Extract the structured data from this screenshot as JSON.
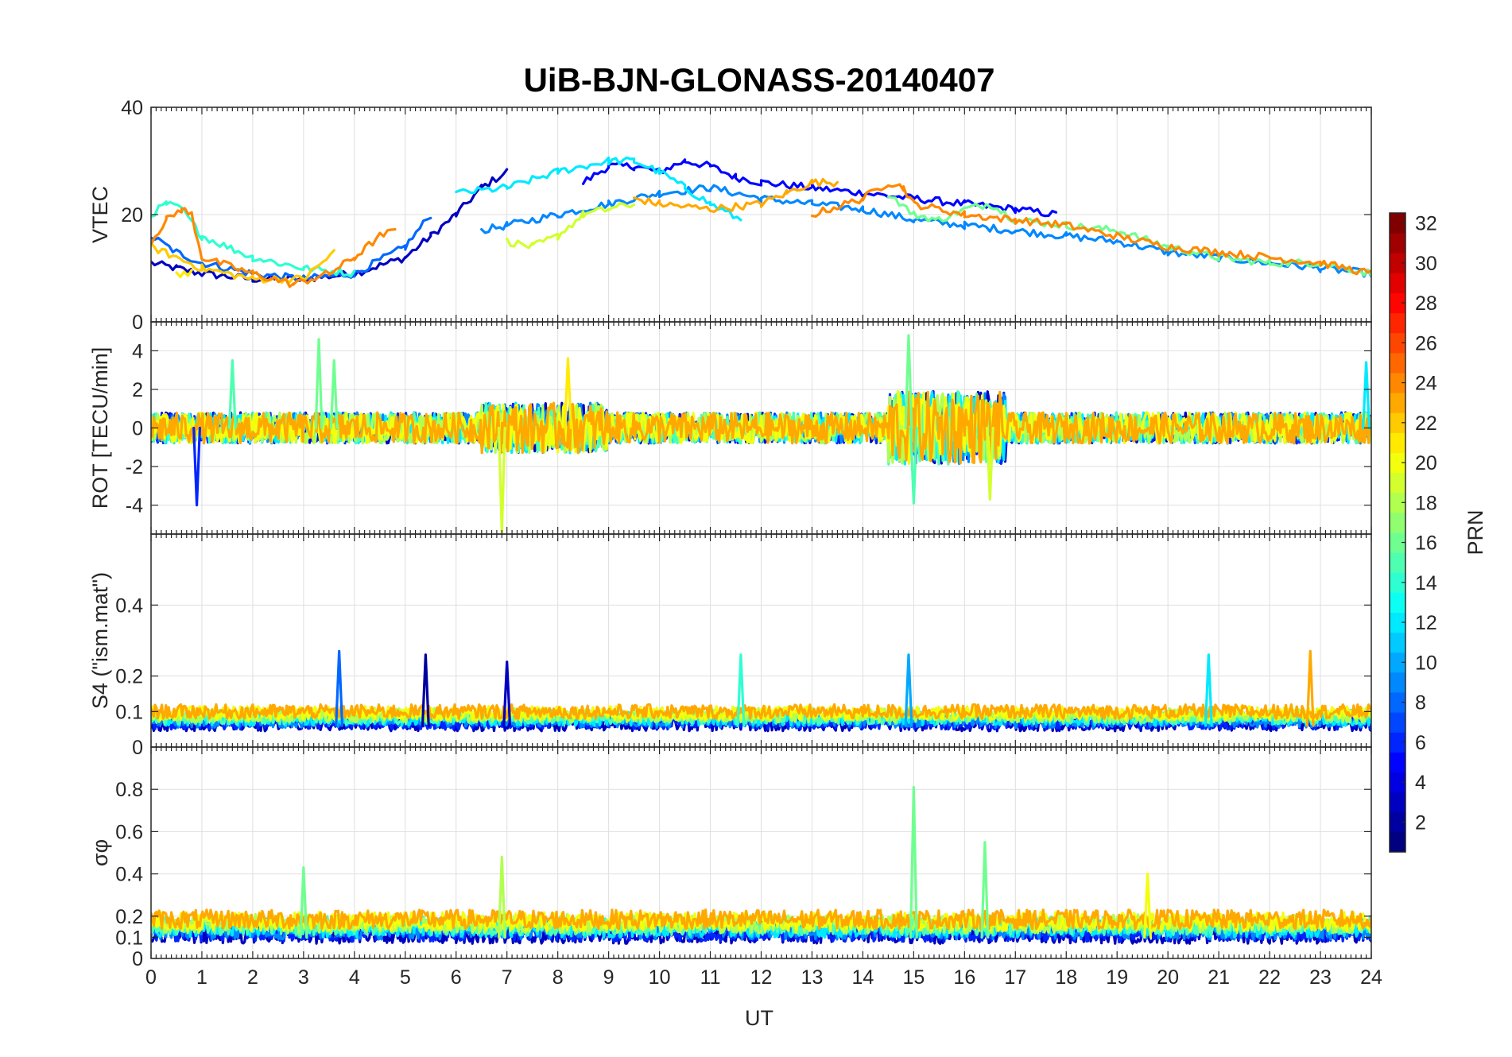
{
  "chart_data": {
    "type": "line",
    "title": "UiB-BJN-GLONASS-20140407",
    "xlabel": "UT",
    "xlim": [
      0,
      24
    ],
    "x_ticks": [
      "0",
      "1",
      "2",
      "3",
      "4",
      "5",
      "6",
      "7",
      "8",
      "9",
      "10",
      "11",
      "12",
      "13",
      "14",
      "15",
      "16",
      "17",
      "18",
      "19",
      "20",
      "21",
      "22",
      "23",
      "24"
    ],
    "colorbar": {
      "label": "PRN",
      "range": [
        1,
        32
      ],
      "ticks": [
        "2",
        "4",
        "6",
        "8",
        "10",
        "12",
        "14",
        "16",
        "18",
        "20",
        "22",
        "24",
        "26",
        "28",
        "30",
        "32"
      ]
    },
    "panels": [
      {
        "name": "vtec",
        "ylabel": "VTEC",
        "ylim": [
          0,
          40
        ],
        "y_ticks": [
          "0",
          "20",
          "40"
        ],
        "series": [
          {
            "prn": 3,
            "x": [
              0,
              0.5,
              1,
              2,
              3,
              4,
              5,
              5.5,
              6,
              6.5,
              7
            ],
            "y": [
              11,
              10,
              9,
              8,
              8,
              9,
              12,
              16,
              20,
              25,
              28
            ]
          },
          {
            "prn": 5,
            "x": [
              8.5,
              9,
              9.5,
              10,
              10.5,
              11,
              11.5,
              12,
              13,
              14,
              15,
              16,
              17,
              17.8
            ],
            "y": [
              26,
              29,
              29,
              28,
              30,
              29,
              27,
              26,
              25,
              24,
              23,
              22,
              21,
              20
            ]
          },
          {
            "prn": 8,
            "x": [
              0,
              0.5,
              1,
              2,
              3,
              4,
              5,
              5.5
            ],
            "y": [
              16,
              13,
              11,
              9,
              8,
              9,
              14,
              20
            ]
          },
          {
            "prn": 9,
            "x": [
              6.5,
              7,
              8,
              9,
              10,
              11,
              12,
              13,
              14,
              15,
              16,
              17,
              18,
              19,
              20,
              21,
              22,
              23,
              24
            ],
            "y": [
              17,
              18,
              20,
              22,
              24,
              25,
              23,
              22,
              21,
              19,
              18,
              17,
              16,
              15,
              13,
              12,
              11,
              10,
              9
            ]
          },
          {
            "prn": 12,
            "x": [
              6,
              7,
              8,
              9,
              9.5,
              10,
              10.5,
              11,
              11.6
            ],
            "y": [
              24,
              25,
              28,
              30,
              30,
              28,
              25,
              22,
              19
            ]
          },
          {
            "prn": 14,
            "x": [
              0,
              0.3,
              0.6,
              1,
              2,
              3,
              4
            ],
            "y": [
              20,
              22,
              21,
              16,
              12,
              10,
              9
            ]
          },
          {
            "prn": 16,
            "x": [
              14.5,
              15,
              15.5,
              16,
              16.5,
              17,
              18,
              19,
              20,
              21,
              22,
              23,
              24
            ],
            "y": [
              24,
              20,
              19,
              21,
              22,
              19,
              18,
              17,
              14,
              12,
              11,
              11,
              9
            ]
          },
          {
            "prn": 19,
            "x": [
              7,
              7.5,
              8,
              8.5,
              9,
              9.5
            ],
            "y": [
              15,
              14,
              16,
              20,
              21,
              22
            ]
          },
          {
            "prn": 21,
            "x": [
              0.5,
              0.8
            ],
            "y": [
              9,
              9
            ]
          },
          {
            "prn": 22,
            "x": [
              0,
              1,
              2,
              3,
              3.6
            ],
            "y": [
              14,
              10,
              8,
              8,
              13
            ]
          },
          {
            "prn": 23,
            "x": [
              9.5,
              10,
              11,
              12,
              12.5,
              13,
              13.5
            ],
            "y": [
              23,
              22,
              21,
              22,
              24,
              26,
              26
            ]
          },
          {
            "prn": 24,
            "x": [
              0,
              0.3,
              0.6,
              0.8,
              1,
              2,
              2.8,
              3.5,
              4,
              4.5,
              4.8
            ],
            "y": [
              15,
              19,
              21,
              20,
              12,
              9,
              7,
              9,
              12,
              16,
              17
            ]
          },
          {
            "prn": 24,
            "x": [
              13,
              14,
              14.5,
              14.8,
              15,
              16,
              17,
              18,
              19,
              20,
              21,
              22,
              23,
              24
            ],
            "y": [
              20,
              23,
              26,
              25,
              22,
              20,
              19,
              18,
              16,
              14,
              13,
              12,
              11,
              9
            ]
          }
        ]
      },
      {
        "name": "rot",
        "ylabel": "ROT [TECU/min]",
        "ylim": [
          -5.5,
          5.5
        ],
        "y_ticks": [
          "-4",
          "-2",
          "0",
          "2",
          "4"
        ],
        "peaks": [
          {
            "x": 0.9,
            "y": -4.0,
            "prn": 6
          },
          {
            "x": 1.6,
            "y": 3.5,
            "prn": 15
          },
          {
            "x": 3.3,
            "y": 4.6,
            "prn": 16
          },
          {
            "x": 3.6,
            "y": 3.5,
            "prn": 16
          },
          {
            "x": 6.9,
            "y": -5.4,
            "prn": 19
          },
          {
            "x": 8.2,
            "y": 3.6,
            "prn": 21
          },
          {
            "x": 14.9,
            "y": 4.8,
            "prn": 16
          },
          {
            "x": 15.0,
            "y": -3.9,
            "prn": 15
          },
          {
            "x": 16.5,
            "y": -3.7,
            "prn": 19
          },
          {
            "x": 23.9,
            "y": 3.4,
            "prn": 12
          }
        ]
      },
      {
        "name": "s4",
        "ylabel": "S4 (\"ism.mat\")",
        "ylim": [
          0,
          0.6
        ],
        "y_ticks": [
          "0",
          "0.1",
          "0.2",
          "0.4"
        ],
        "peaks": [
          {
            "x": 3.7,
            "y": 0.27,
            "prn": 8
          },
          {
            "x": 5.4,
            "y": 0.26,
            "prn": 2
          },
          {
            "x": 7.0,
            "y": 0.24,
            "prn": 3
          },
          {
            "x": 11.6,
            "y": 0.26,
            "prn": 14
          },
          {
            "x": 14.9,
            "y": 0.26,
            "prn": 10
          },
          {
            "x": 20.8,
            "y": 0.26,
            "prn": 12
          },
          {
            "x": 22.8,
            "y": 0.27,
            "prn": 23
          }
        ]
      },
      {
        "name": "sigma_phi",
        "ylabel": "σφ",
        "ylim": [
          0,
          1
        ],
        "y_ticks": [
          "0",
          "0.1",
          "0.2",
          "0.4",
          "0.6",
          "0.8"
        ],
        "peaks": [
          {
            "x": 3.0,
            "y": 0.43,
            "prn": 16
          },
          {
            "x": 6.9,
            "y": 0.48,
            "prn": 18
          },
          {
            "x": 15.0,
            "y": 0.81,
            "prn": 16
          },
          {
            "x": 16.4,
            "y": 0.55,
            "prn": 16
          },
          {
            "x": 19.6,
            "y": 0.4,
            "prn": 20
          }
        ]
      }
    ]
  }
}
